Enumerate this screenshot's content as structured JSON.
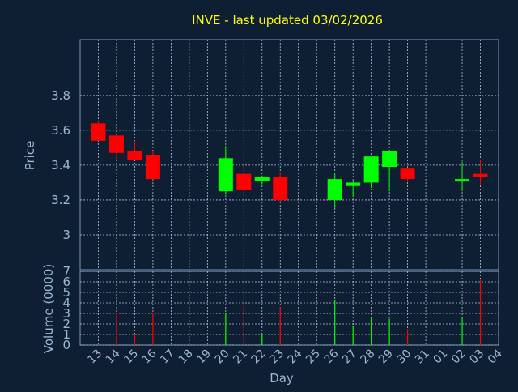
{
  "chart_data": [
    {
      "type": "candlestick",
      "title": "INVE - last updated 03/02/2026",
      "ylabel": "Price",
      "xlabel": "Day",
      "x_tick_labels": [
        "13",
        "14",
        "15",
        "16",
        "17",
        "18",
        "19",
        "20",
        "21",
        "22",
        "23",
        "24",
        "25",
        "26",
        "27",
        "28",
        "29",
        "30",
        "31",
        "01",
        "02",
        "03",
        "04"
      ],
      "y_ticks": [
        3,
        3.2,
        3.4,
        3.6,
        3.8
      ],
      "y_tick_labels": [
        "3",
        "3.2",
        "3.4",
        "3.6",
        "3.8"
      ],
      "ylim": [
        2.8,
        4.12
      ],
      "grid": true,
      "colors": {
        "up": "#00ff00",
        "down": "#ff0000",
        "title": "#ffff00",
        "text": "#9ab8d4",
        "axis": "#7a9cc0",
        "grid": "#b0c4de"
      },
      "candles": [
        {
          "x": 0,
          "open": 3.64,
          "high": 3.65,
          "low": 3.54,
          "close": 3.54
        },
        {
          "x": 1,
          "open": 3.57,
          "high": 3.57,
          "low": 3.43,
          "close": 3.47
        },
        {
          "x": 2,
          "open": 3.48,
          "high": 3.54,
          "low": 3.43,
          "close": 3.43
        },
        {
          "x": 3,
          "open": 3.46,
          "high": 3.48,
          "low": 3.32,
          "close": 3.32
        },
        {
          "x": 7,
          "open": 3.25,
          "high": 3.51,
          "low": 3.23,
          "close": 3.44
        },
        {
          "x": 8,
          "open": 3.35,
          "high": 3.41,
          "low": 3.24,
          "close": 3.26
        },
        {
          "x": 9,
          "open": 3.31,
          "high": 3.34,
          "low": 3.29,
          "close": 3.33
        },
        {
          "x": 10,
          "open": 3.33,
          "high": 3.36,
          "low": 3.19,
          "close": 3.2
        },
        {
          "x": 13,
          "open": 3.2,
          "high": 3.35,
          "low": 3.15,
          "close": 3.32
        },
        {
          "x": 14,
          "open": 3.28,
          "high": 3.31,
          "low": 3.22,
          "close": 3.3
        },
        {
          "x": 15,
          "open": 3.3,
          "high": 3.45,
          "low": 3.27,
          "close": 3.45
        },
        {
          "x": 16,
          "open": 3.39,
          "high": 3.48,
          "low": 3.25,
          "close": 3.48
        },
        {
          "x": 17,
          "open": 3.38,
          "high": 3.38,
          "low": 3.31,
          "close": 3.32
        },
        {
          "x": 20,
          "open": 3.31,
          "high": 3.42,
          "low": 3.25,
          "close": 3.32
        },
        {
          "x": 21,
          "open": 3.35,
          "high": 3.43,
          "low": 3.29,
          "close": 3.33
        }
      ]
    },
    {
      "type": "bar",
      "ylabel": "Volume (0000)",
      "xlabel": "Day",
      "x_tick_labels": [
        "13",
        "14",
        "15",
        "16",
        "17",
        "18",
        "19",
        "20",
        "21",
        "22",
        "23",
        "24",
        "25",
        "26",
        "27",
        "28",
        "29",
        "30",
        "31",
        "01",
        "02",
        "03",
        "04"
      ],
      "y_ticks": [
        0,
        1,
        2,
        3,
        4,
        5,
        6,
        7
      ],
      "y_tick_labels": [
        "0",
        "1",
        "2",
        "3",
        "4",
        "5",
        "6",
        "7"
      ],
      "ylim": [
        0,
        7
      ],
      "grid": true,
      "volumes": [
        {
          "x": 0,
          "value": 0,
          "dir": "down"
        },
        {
          "x": 1,
          "value": 3.0,
          "dir": "down"
        },
        {
          "x": 2,
          "value": 1.0,
          "dir": "down"
        },
        {
          "x": 3,
          "value": 3.0,
          "dir": "down"
        },
        {
          "x": 7,
          "value": 3.0,
          "dir": "up"
        },
        {
          "x": 8,
          "value": 3.7,
          "dir": "down"
        },
        {
          "x": 9,
          "value": 1.0,
          "dir": "up"
        },
        {
          "x": 10,
          "value": 3.6,
          "dir": "down"
        },
        {
          "x": 13,
          "value": 4.3,
          "dir": "up"
        },
        {
          "x": 14,
          "value": 1.8,
          "dir": "up"
        },
        {
          "x": 15,
          "value": 2.6,
          "dir": "up"
        },
        {
          "x": 16,
          "value": 2.5,
          "dir": "up"
        },
        {
          "x": 17,
          "value": 1.5,
          "dir": "down"
        },
        {
          "x": 20,
          "value": 2.6,
          "dir": "up"
        },
        {
          "x": 21,
          "value": 6.2,
          "dir": "down"
        }
      ]
    }
  ]
}
